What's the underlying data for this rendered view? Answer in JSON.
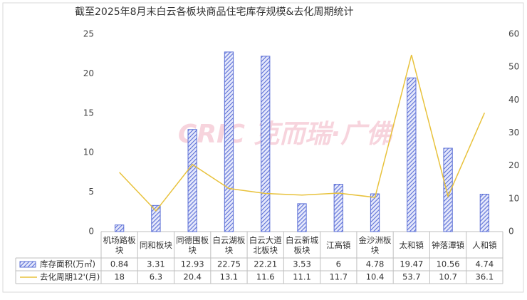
{
  "chart_data": {
    "type": "bar",
    "title": "截至2025年8月末白云各板块商品住宅库存规模&去化周期统计",
    "watermark": "CRIC 克而瑞·广佛",
    "categories": [
      "机场路板块",
      "同和板块",
      "同德围板块",
      "白云湖板块",
      "白云大道北板块",
      "白云新城板块",
      "江高镇",
      "金沙洲板块",
      "太和镇",
      "钟落潭镇",
      "人和镇"
    ],
    "series": [
      {
        "name": "库存面积(万㎡)",
        "type": "bar",
        "color": "#5b6fd6",
        "values": [
          0.84,
          3.31,
          12.93,
          22.75,
          22.21,
          3.53,
          6,
          4.78,
          19.47,
          10.56,
          4.74
        ]
      },
      {
        "name": "去化周期12'(月)",
        "type": "line",
        "axis": "y2",
        "color": "#e8c23c",
        "values": [
          18,
          6.3,
          20.4,
          13.1,
          11.6,
          11.1,
          11.7,
          10.4,
          53.7,
          10.7,
          36.1
        ]
      }
    ],
    "ylim": [
      0,
      25
    ],
    "yticks": [
      0,
      5,
      10,
      15,
      20,
      25
    ],
    "y2lim": [
      0,
      60
    ],
    "y2ticks": [
      0,
      10,
      20,
      30,
      40,
      50,
      60
    ]
  }
}
